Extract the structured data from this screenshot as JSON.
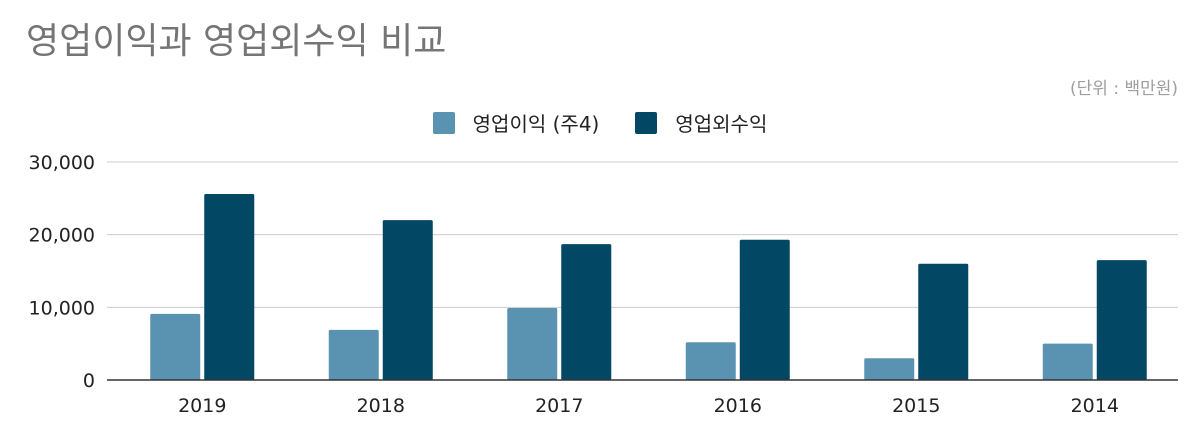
{
  "chart_data": {
    "type": "bar",
    "title": "영업이익과 영업외수익 비교",
    "subtitle": "(단위 : 백만원)",
    "xlabel": "",
    "ylabel": "",
    "categories": [
      "2019",
      "2018",
      "2017",
      "2016",
      "2015",
      "2014"
    ],
    "series": [
      {
        "name": "영업이익 (주4)",
        "color": "#5a93b1",
        "values": [
          9100,
          6900,
          9900,
          5200,
          3000,
          5000
        ]
      },
      {
        "name": "영업외수익",
        "color": "#024763",
        "values": [
          25600,
          22000,
          18700,
          19300,
          16000,
          16500
        ]
      }
    ],
    "ylim": [
      0,
      30000
    ],
    "yticks": [
      "0",
      "10,000",
      "20,000",
      "30,000"
    ],
    "ytick_values": [
      0,
      10000,
      20000,
      30000
    ],
    "grid": true,
    "legend_position": "top-center"
  }
}
